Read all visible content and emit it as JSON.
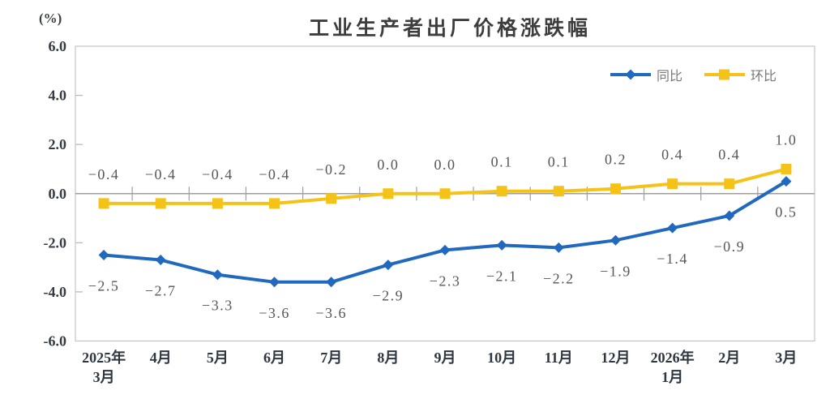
{
  "chart_data": {
    "type": "line",
    "title": "工业生产者出厂价格涨跌幅",
    "ylabel": "(%)",
    "xlabel": "",
    "ylim": [
      -6.0,
      6.0
    ],
    "ytick_step": 2.0,
    "ytick_labels": [
      "6.0",
      "4.0",
      "2.0",
      "0.0",
      "-2.0",
      "-4.0",
      "-6.0"
    ],
    "categories": [
      [
        "2025年",
        "3月"
      ],
      "4月",
      "5月",
      "6月",
      "7月",
      "8月",
      "9月",
      "10月",
      "11月",
      "12月",
      [
        "2026年",
        "1月"
      ],
      "2月",
      "3月"
    ],
    "series": [
      {
        "name": "同比",
        "color": "#2069BE",
        "marker": "diamond",
        "label_position": "below",
        "values": [
          -2.5,
          -2.7,
          -3.3,
          -3.6,
          -3.6,
          -2.9,
          -2.3,
          -2.1,
          -2.2,
          -1.9,
          -1.4,
          -0.9,
          0.5
        ]
      },
      {
        "name": "环比",
        "color": "#F5C217",
        "marker": "square",
        "label_position": "above",
        "values": [
          -0.4,
          -0.4,
          -0.4,
          -0.4,
          -0.2,
          0.0,
          0.0,
          0.1,
          0.1,
          0.2,
          0.4,
          0.4,
          1.0
        ]
      }
    ],
    "legend_position": "top-right",
    "grid": false,
    "axis_color": "#9e9e9e",
    "border_color": "#c4c4c4",
    "tick_color": "#b5b5b5",
    "data_label_color": "#54575c"
  }
}
